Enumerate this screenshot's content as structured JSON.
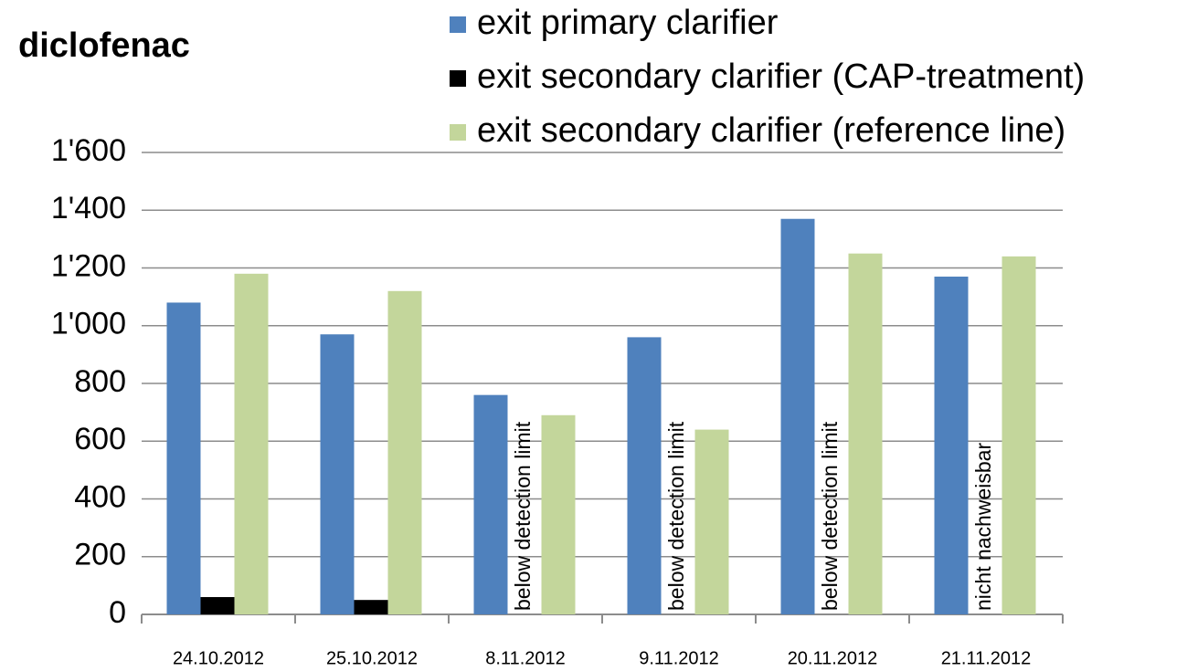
{
  "chart_data": {
    "type": "bar",
    "title": "diclofenac",
    "categories": [
      "24.10.2012",
      "25.10.2012",
      "8.11.2012",
      "9.11.2012",
      "20.11.2012",
      "21.11.2012"
    ],
    "series": [
      {
        "name": "exit primary clarifier",
        "color": "#4f81bd",
        "values": [
          1080,
          970,
          760,
          960,
          1370,
          1170
        ]
      },
      {
        "name": "exit secondary clarifier (CAP-treatment)",
        "color": "#000000",
        "values": [
          60,
          50,
          null,
          null,
          null,
          null
        ]
      },
      {
        "name": "exit secondary clarifier (reference line)",
        "color": "#c3d69b",
        "values": [
          1180,
          1120,
          690,
          640,
          1250,
          1240
        ]
      }
    ],
    "annotations": [
      null,
      null,
      "below detection limit",
      "below detection limit",
      "below detection limit",
      "nicht nachweisbar"
    ],
    "ylim": [
      0,
      1600
    ],
    "yticks": [
      0,
      200,
      400,
      600,
      800,
      {
        "value": 1000,
        "label": "1'000"
      },
      {
        "value": 1200,
        "label": "1'200"
      },
      {
        "value": 1400,
        "label": "1'400"
      },
      {
        "value": 1600,
        "label": "1'600"
      }
    ],
    "grid": true,
    "legend": "top-right"
  }
}
